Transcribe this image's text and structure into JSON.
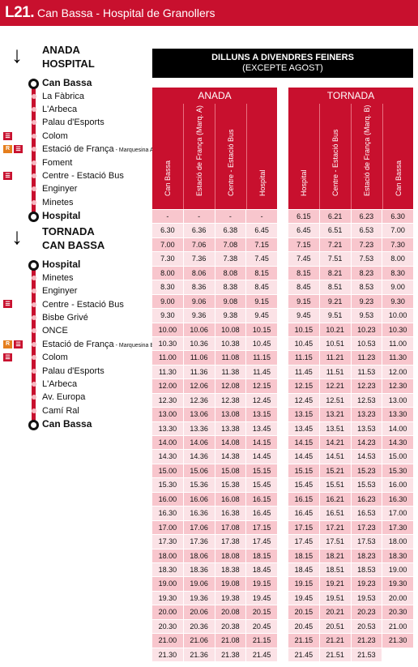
{
  "header": {
    "code": "L21.",
    "name": "Can Bassa - Hospital de Granollers"
  },
  "route": {
    "anada": {
      "line1": "ANADA",
      "line2": "HOSPITAL"
    },
    "tornada": {
      "line1": "TORNADA",
      "line2": "CAN BASSA"
    },
    "anada_stops": [
      {
        "label": "Can Bassa",
        "terminal": true,
        "badges": []
      },
      {
        "label": "La Fàbrica",
        "badges": []
      },
      {
        "label": "L'Arbeca",
        "badges": []
      },
      {
        "label": "Palau d'Esports",
        "badges": []
      },
      {
        "label": "Colom",
        "badges": [
          "train"
        ]
      },
      {
        "label": "Estació de França",
        "sub": " - Marquesina A",
        "badges": [
          "renfe",
          "train"
        ]
      },
      {
        "label": "Foment",
        "badges": []
      },
      {
        "label": "Centre - Estació Bus",
        "badges": [
          "train"
        ]
      },
      {
        "label": "Enginyer",
        "badges": []
      },
      {
        "label": "Minetes",
        "badges": []
      },
      {
        "label": "Hospital",
        "terminal": true,
        "badges": []
      }
    ],
    "tornada_stops": [
      {
        "label": "Hospital",
        "terminal": true,
        "badges": []
      },
      {
        "label": "Minetes",
        "badges": []
      },
      {
        "label": "Enginyer",
        "badges": []
      },
      {
        "label": "Centre - Estació Bus",
        "badges": [
          "train"
        ]
      },
      {
        "label": "Bisbe Grivé",
        "badges": []
      },
      {
        "label": "ONCE",
        "badges": []
      },
      {
        "label": "Estació de França",
        "sub": " - Marquesina B",
        "badges": [
          "renfe",
          "train"
        ]
      },
      {
        "label": "Colom",
        "badges": [
          "train"
        ]
      },
      {
        "label": "Palau d'Esports",
        "badges": []
      },
      {
        "label": "L'Arbeca",
        "badges": []
      },
      {
        "label": "Av. Europa",
        "badges": []
      },
      {
        "label": "Camí Ral",
        "badges": []
      },
      {
        "label": "Can Bassa",
        "terminal": true,
        "badges": []
      }
    ]
  },
  "schedule": {
    "title": "DILLUNS A DIVENDRES FEINERS",
    "subtitle": "(EXCEPTE AGOST)",
    "anada": {
      "label": "ANADA",
      "columns": [
        "Can Bassa",
        "Estació de França (Marq. A)",
        "Centre - Estació Bus",
        "Hospital"
      ],
      "rows": [
        [
          "-",
          "-",
          "-",
          "-"
        ],
        [
          "6.30",
          "6.36",
          "6.38",
          "6.45"
        ],
        [
          "7.00",
          "7.06",
          "7.08",
          "7.15"
        ],
        [
          "7.30",
          "7.36",
          "7.38",
          "7.45"
        ],
        [
          "8.00",
          "8.06",
          "8.08",
          "8.15"
        ],
        [
          "8.30",
          "8.36",
          "8.38",
          "8.45"
        ],
        [
          "9.00",
          "9.06",
          "9.08",
          "9.15"
        ],
        [
          "9.30",
          "9.36",
          "9.38",
          "9.45"
        ],
        [
          "10.00",
          "10.06",
          "10.08",
          "10.15"
        ],
        [
          "10.30",
          "10.36",
          "10.38",
          "10.45"
        ],
        [
          "11.00",
          "11.06",
          "11.08",
          "11.15"
        ],
        [
          "11.30",
          "11.36",
          "11.38",
          "11.45"
        ],
        [
          "12.00",
          "12.06",
          "12.08",
          "12.15"
        ],
        [
          "12.30",
          "12.36",
          "12.38",
          "12.45"
        ],
        [
          "13.00",
          "13.06",
          "13.08",
          "13.15"
        ],
        [
          "13.30",
          "13.36",
          "13.38",
          "13.45"
        ],
        [
          "14.00",
          "14.06",
          "14.08",
          "14.15"
        ],
        [
          "14.30",
          "14.36",
          "14.38",
          "14.45"
        ],
        [
          "15.00",
          "15.06",
          "15.08",
          "15.15"
        ],
        [
          "15.30",
          "15.36",
          "15.38",
          "15.45"
        ],
        [
          "16.00",
          "16.06",
          "16.08",
          "16.15"
        ],
        [
          "16.30",
          "16.36",
          "16.38",
          "16.45"
        ],
        [
          "17.00",
          "17.06",
          "17.08",
          "17.15"
        ],
        [
          "17.30",
          "17.36",
          "17.38",
          "17.45"
        ],
        [
          "18.00",
          "18.06",
          "18.08",
          "18.15"
        ],
        [
          "18.30",
          "18.36",
          "18.38",
          "18.45"
        ],
        [
          "19.00",
          "19.06",
          "19.08",
          "19.15"
        ],
        [
          "19.30",
          "19.36",
          "19.38",
          "19.45"
        ],
        [
          "20.00",
          "20.06",
          "20.08",
          "20.15"
        ],
        [
          "20.30",
          "20.36",
          "20.38",
          "20.45"
        ],
        [
          "21.00",
          "21.06",
          "21.08",
          "21.15"
        ],
        [
          "21.30",
          "21.36",
          "21.38",
          "21.45"
        ]
      ]
    },
    "tornada": {
      "label": "TORNADA",
      "columns": [
        "Hospital",
        "Centre - Estació Bus",
        "Estació de França (Marq. B)",
        "Can Bassa"
      ],
      "rows": [
        [
          "6.15",
          "6.21",
          "6.23",
          "6.30"
        ],
        [
          "6.45",
          "6.51",
          "6.53",
          "7.00"
        ],
        [
          "7.15",
          "7.21",
          "7.23",
          "7.30"
        ],
        [
          "7.45",
          "7.51",
          "7.53",
          "8.00"
        ],
        [
          "8.15",
          "8.21",
          "8.23",
          "8.30"
        ],
        [
          "8.45",
          "8.51",
          "8.53",
          "9.00"
        ],
        [
          "9.15",
          "9.21",
          "9.23",
          "9.30"
        ],
        [
          "9.45",
          "9.51",
          "9.53",
          "10.00"
        ],
        [
          "10.15",
          "10.21",
          "10.23",
          "10.30"
        ],
        [
          "10.45",
          "10.51",
          "10.53",
          "11.00"
        ],
        [
          "11.15",
          "11.21",
          "11.23",
          "11.30"
        ],
        [
          "11.45",
          "11.51",
          "11.53",
          "12.00"
        ],
        [
          "12.15",
          "12.21",
          "12.23",
          "12.30"
        ],
        [
          "12.45",
          "12.51",
          "12.53",
          "13.00"
        ],
        [
          "13.15",
          "13.21",
          "13.23",
          "13.30"
        ],
        [
          "13.45",
          "13.51",
          "13.53",
          "14.00"
        ],
        [
          "14.15",
          "14.21",
          "14.23",
          "14.30"
        ],
        [
          "14.45",
          "14.51",
          "14.53",
          "15.00"
        ],
        [
          "15.15",
          "15.21",
          "15.23",
          "15.30"
        ],
        [
          "15.45",
          "15.51",
          "15.53",
          "16.00"
        ],
        [
          "16.15",
          "16.21",
          "16.23",
          "16.30"
        ],
        [
          "16.45",
          "16.51",
          "16.53",
          "17.00"
        ],
        [
          "17.15",
          "17.21",
          "17.23",
          "17.30"
        ],
        [
          "17.45",
          "17.51",
          "17.53",
          "18.00"
        ],
        [
          "18.15",
          "18.21",
          "18.23",
          "18.30"
        ],
        [
          "18.45",
          "18.51",
          "18.53",
          "19.00"
        ],
        [
          "19.15",
          "19.21",
          "19.23",
          "19.30"
        ],
        [
          "19.45",
          "19.51",
          "19.53",
          "20.00"
        ],
        [
          "20.15",
          "20.21",
          "20.23",
          "20.30"
        ],
        [
          "20.45",
          "20.51",
          "20.53",
          "21.00"
        ],
        [
          "21.15",
          "21.21",
          "21.23",
          "21.30"
        ],
        [
          "21.45",
          "21.51",
          "21.53",
          ""
        ]
      ]
    }
  },
  "colors": {
    "brand_red": "#c8102e",
    "row_dark": "#f8c6cd",
    "row_light": "#fbe2e6",
    "renfe_orange": "#e57e1c"
  },
  "badge_icons": {
    "renfe": "R",
    "train": "train-icon"
  }
}
